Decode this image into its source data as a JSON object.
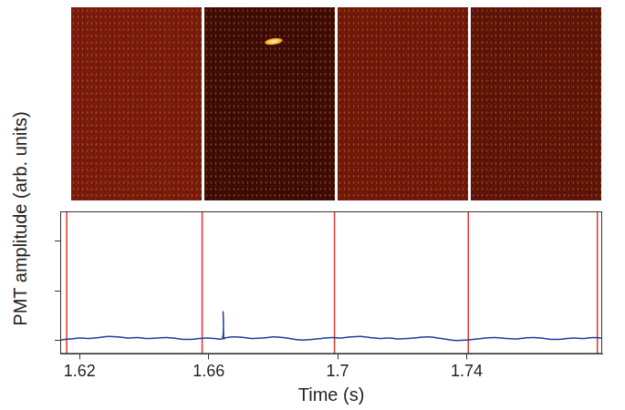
{
  "chart_data": {
    "type": "line",
    "y_label": "PMT amplitude (arb. units)",
    "x_label": "Time (s)",
    "x": [
      1.614,
      1.617,
      1.62,
      1.623,
      1.626,
      1.629,
      1.632,
      1.635,
      1.638,
      1.641,
      1.644,
      1.647,
      1.65,
      1.653,
      1.656,
      1.659,
      1.662,
      1.6643,
      1.6645,
      1.6647,
      1.665,
      1.668,
      1.671,
      1.674,
      1.677,
      1.68,
      1.683,
      1.686,
      1.689,
      1.692,
      1.695,
      1.698,
      1.701,
      1.704,
      1.707,
      1.71,
      1.713,
      1.716,
      1.719,
      1.722,
      1.725,
      1.728,
      1.731,
      1.734,
      1.737,
      1.74,
      1.743,
      1.746,
      1.749,
      1.752,
      1.755,
      1.758,
      1.761,
      1.764,
      1.767,
      1.77,
      1.773,
      1.776,
      1.779,
      1.782
    ],
    "series": [
      {
        "color": "#1f3c9e",
        "values": [
          0.01,
          0.03,
          0.05,
          0.04,
          0.06,
          0.08,
          0.07,
          0.05,
          0.06,
          0.04,
          0.05,
          0.06,
          0.04,
          0.02,
          0.03,
          0.05,
          0.04,
          0.04,
          0.58,
          0.03,
          0.05,
          0.07,
          0.06,
          0.04,
          0.05,
          0.07,
          0.06,
          0.03,
          0.01,
          0.02,
          0.04,
          0.06,
          0.05,
          0.07,
          0.08,
          0.06,
          0.04,
          0.05,
          0.03,
          0.04,
          0.06,
          0.07,
          0.05,
          0.02,
          0,
          0.01,
          0.03,
          0.05,
          0.06,
          0.04,
          0.03,
          0.05,
          0.06,
          0.04,
          0.02,
          0.03,
          0.05,
          0.04,
          0.06,
          0.05
        ]
      }
    ],
    "vertical_lines": {
      "x": [
        1.616,
        1.658,
        1.699,
        1.7405,
        1.7805
      ],
      "color": "#e8302a"
    },
    "xlim": [
      1.614,
      1.782
    ],
    "xticks": [
      1.62,
      1.66,
      1.7,
      1.74
    ],
    "ylim": [
      -0.27,
      2.6
    ],
    "yticks": [
      0,
      1,
      2
    ],
    "tick_labels": "x",
    "grid": false
  }
}
